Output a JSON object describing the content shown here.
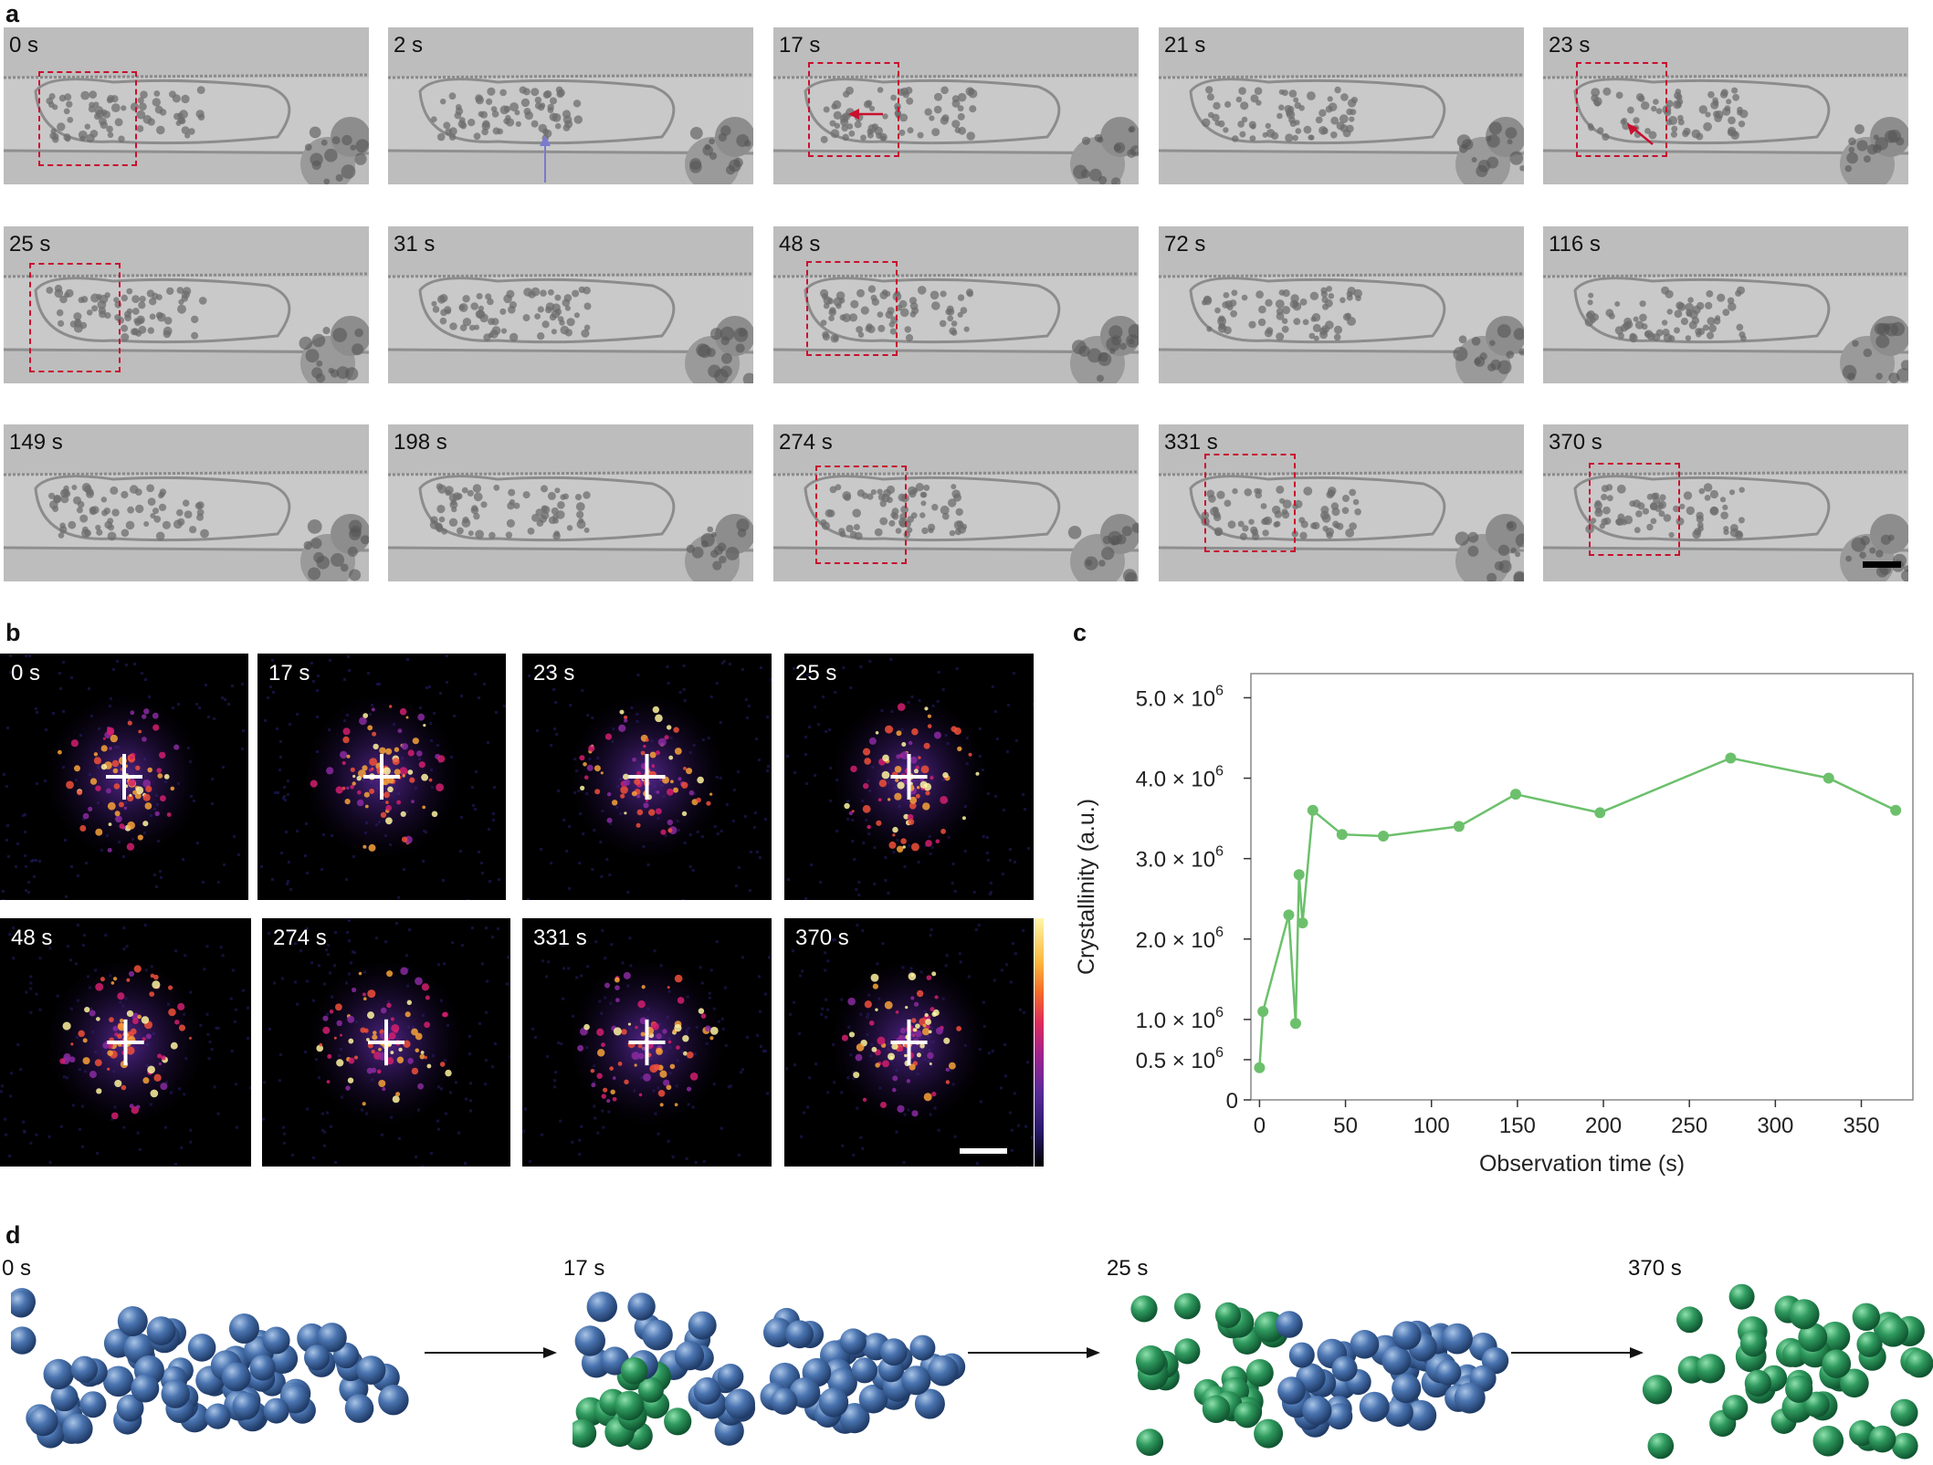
{
  "panel_a": {
    "label": "a",
    "frames": [
      "0 s",
      "2 s",
      "17 s",
      "21 s",
      "23 s",
      "25 s",
      "31 s",
      "48 s",
      "72 s",
      "116 s",
      "149 s",
      "198 s",
      "274 s",
      "331 s",
      "370 s"
    ]
  },
  "panel_b": {
    "label": "b",
    "frames": [
      "0 s",
      "17 s",
      "23 s",
      "25 s",
      "48 s",
      "274 s",
      "331 s",
      "370 s"
    ]
  },
  "panel_c": {
    "label": "c"
  },
  "panel_d": {
    "label": "d",
    "stages": [
      "0 s",
      "17 s",
      "25 s",
      "370 s"
    ]
  },
  "colors": {
    "box": "#c8102e",
    "line": "#6cc06c",
    "blue_sphere": "#4a74b0",
    "green_sphere": "#2f9a5e"
  },
  "chart_data": {
    "type": "line",
    "xlabel": "Observation time (s)",
    "ylabel": "Crystallinity (a.u.)",
    "xlim": [
      -5,
      380
    ],
    "ylim": [
      0,
      5300000.0
    ],
    "xticks": [
      "0",
      "50",
      "100",
      "150",
      "200",
      "250",
      "300",
      "350"
    ],
    "yticks": [
      {
        "m": "0",
        "e": ""
      },
      {
        "m": "0.5 × 10",
        "e": "6"
      },
      {
        "m": "1.0 × 10",
        "e": "6"
      },
      {
        "m": "2.0 × 10",
        "e": "6"
      },
      {
        "m": "3.0 × 10",
        "e": "6"
      },
      {
        "m": "4.0 × 10",
        "e": "6"
      },
      {
        "m": "5.0 × 10",
        "e": "6"
      }
    ],
    "ytick_values": [
      0,
      500000.0,
      1000000.0,
      2000000.0,
      3000000.0,
      4000000.0,
      5000000.0
    ],
    "xtick_values": [
      0,
      50,
      100,
      150,
      200,
      250,
      300,
      350
    ],
    "grid": false,
    "x": [
      0,
      2,
      17,
      21,
      23,
      25,
      31,
      48,
      72,
      116,
      149,
      198,
      274,
      331,
      370
    ],
    "y": [
      400000.0,
      1100000.0,
      2300000.0,
      950000.0,
      2800000.0,
      2200000.0,
      3600000.0,
      3300000.0,
      3280000.0,
      3400000.0,
      3800000.0,
      3570000.0,
      4250000.0,
      4000000.0,
      3600000.0
    ]
  }
}
